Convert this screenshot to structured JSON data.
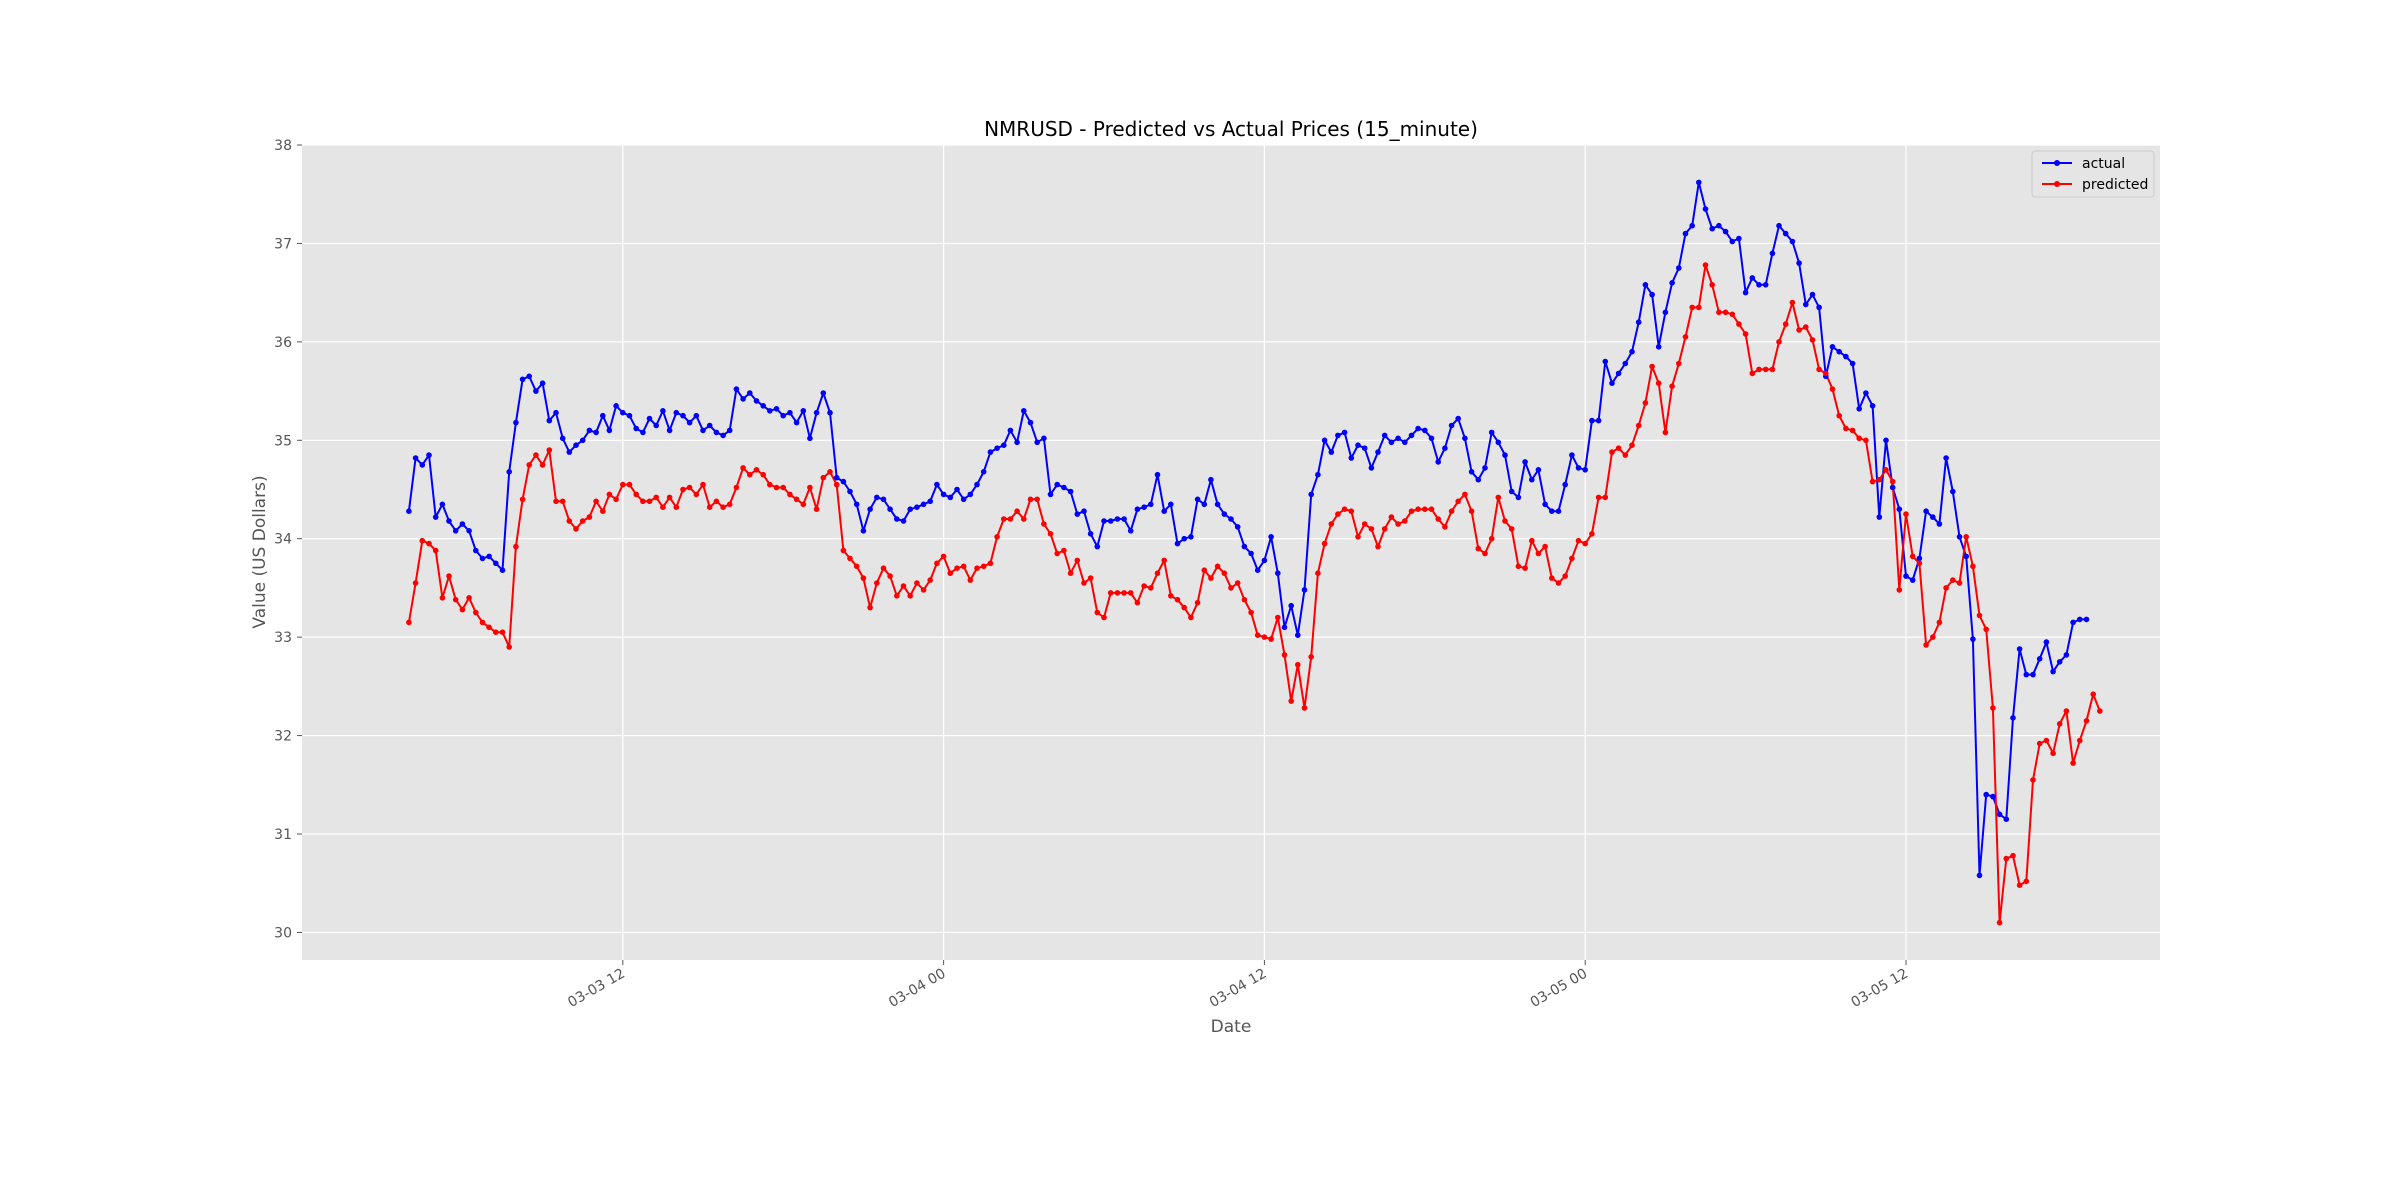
{
  "chart_data": {
    "type": "line",
    "title": "NMRUSD - Predicted vs Actual Prices (15_minute)",
    "xlabel": "Date",
    "ylabel": "Value (US Dollars)",
    "x_start": "2021-03-03 04:00",
    "x_step_minutes": 15,
    "xlim": [
      "2021-03-03 00:00",
      "2021-03-05 21:30"
    ],
    "ylim": [
      29.72,
      38.0
    ],
    "y_ticks": [
      30,
      31,
      32,
      33,
      34,
      35,
      36,
      37,
      38
    ],
    "x_ticks": [
      {
        "label": "03-03 12",
        "value": "2021-03-03 12:00"
      },
      {
        "label": "03-04 00",
        "value": "2021-03-04 00:00"
      },
      {
        "label": "03-04 12",
        "value": "2021-03-04 12:00"
      },
      {
        "label": "03-05 00",
        "value": "2021-03-05 00:00"
      },
      {
        "label": "03-05 12",
        "value": "2021-03-05 12:00"
      }
    ],
    "grid": true,
    "legend_position": "top-right",
    "series": [
      {
        "name": "actual",
        "color": "#0000ff",
        "values": [
          34.28,
          34.82,
          34.75,
          34.85,
          34.22,
          34.35,
          34.18,
          34.08,
          34.15,
          34.08,
          33.88,
          33.8,
          33.82,
          33.75,
          33.68,
          34.68,
          35.18,
          35.62,
          35.65,
          35.5,
          35.58,
          35.2,
          35.28,
          35.02,
          34.88,
          34.95,
          35.0,
          35.1,
          35.08,
          35.25,
          35.1,
          35.35,
          35.28,
          35.25,
          35.12,
          35.08,
          35.22,
          35.15,
          35.3,
          35.1,
          35.28,
          35.25,
          35.18,
          35.25,
          35.1,
          35.15,
          35.08,
          35.05,
          35.1,
          35.52,
          35.42,
          35.48,
          35.4,
          35.35,
          35.3,
          35.32,
          35.25,
          35.28,
          35.18,
          35.3,
          35.02,
          35.28,
          35.48,
          35.28,
          34.62,
          34.58,
          34.48,
          34.35,
          34.08,
          34.3,
          34.42,
          34.4,
          34.3,
          34.2,
          34.18,
          34.3,
          34.32,
          34.35,
          34.38,
          34.55,
          34.45,
          34.42,
          34.5,
          34.4,
          34.45,
          34.55,
          34.68,
          34.88,
          34.92,
          34.95,
          35.1,
          34.98,
          35.3,
          35.18,
          34.98,
          35.02,
          34.45,
          34.55,
          34.52,
          34.48,
          34.25,
          34.28,
          34.05,
          33.92,
          34.18,
          34.18,
          34.2,
          34.2,
          34.08,
          34.3,
          34.32,
          34.35,
          34.65,
          34.28,
          34.35,
          33.95,
          34.0,
          34.02,
          34.4,
          34.35,
          34.6,
          34.35,
          34.25,
          34.2,
          34.12,
          33.92,
          33.85,
          33.68,
          33.78,
          34.02,
          33.65,
          33.1,
          33.32,
          33.02,
          33.48,
          34.45,
          34.65,
          35.0,
          34.88,
          35.05,
          35.08,
          34.82,
          34.95,
          34.92,
          34.72,
          34.88,
          35.05,
          34.98,
          35.02,
          34.98,
          35.05,
          35.12,
          35.1,
          35.02,
          34.78,
          34.92,
          35.15,
          35.22,
          35.02,
          34.68,
          34.6,
          34.72,
          35.08,
          34.98,
          34.85,
          34.48,
          34.42,
          34.78,
          34.6,
          34.7,
          34.35,
          34.28,
          34.28,
          34.55,
          34.85,
          34.72,
          34.7,
          35.2,
          35.2,
          35.8,
          35.58,
          35.68,
          35.78,
          35.9,
          36.2,
          36.58,
          36.48,
          35.95,
          36.3,
          36.6,
          36.75,
          37.1,
          37.18,
          37.62,
          37.35,
          37.15,
          37.18,
          37.12,
          37.02,
          37.05,
          36.5,
          36.65,
          36.58,
          36.58,
          36.9,
          37.18,
          37.1,
          37.02,
          36.8,
          36.38,
          36.48,
          36.35,
          35.65,
          35.95,
          35.9,
          35.85,
          35.78,
          35.32,
          35.48,
          35.35,
          34.22,
          35.0,
          34.52,
          34.3,
          33.62,
          33.58,
          33.8,
          34.28,
          34.22,
          34.15,
          34.82,
          34.48,
          34.02,
          33.82,
          32.98,
          30.58,
          31.4,
          31.38,
          31.2,
          31.15,
          32.18,
          32.88,
          32.62,
          32.62,
          32.78,
          32.95,
          32.65,
          32.75,
          32.82,
          33.15,
          33.18,
          33.18
        ]
      },
      {
        "name": "predicted",
        "color": "#ff0000",
        "values": [
          33.15,
          33.55,
          33.98,
          33.95,
          33.88,
          33.4,
          33.62,
          33.38,
          33.28,
          33.4,
          33.25,
          33.15,
          33.1,
          33.05,
          33.05,
          32.9,
          33.92,
          34.4,
          34.75,
          34.85,
          34.75,
          34.9,
          34.38,
          34.38,
          34.18,
          34.1,
          34.18,
          34.22,
          34.38,
          34.28,
          34.45,
          34.4,
          34.55,
          34.55,
          34.45,
          34.38,
          34.38,
          34.42,
          34.32,
          34.42,
          34.32,
          34.5,
          34.52,
          34.45,
          34.55,
          34.32,
          34.38,
          34.32,
          34.35,
          34.52,
          34.72,
          34.65,
          34.7,
          34.65,
          34.55,
          34.52,
          34.52,
          34.45,
          34.4,
          34.35,
          34.52,
          34.3,
          34.62,
          34.68,
          34.55,
          33.88,
          33.8,
          33.72,
          33.6,
          33.3,
          33.55,
          33.7,
          33.62,
          33.42,
          33.52,
          33.42,
          33.55,
          33.48,
          33.58,
          33.75,
          33.82,
          33.65,
          33.7,
          33.72,
          33.58,
          33.7,
          33.72,
          33.75,
          34.02,
          34.2,
          34.2,
          34.28,
          34.2,
          34.4,
          34.4,
          34.15,
          34.05,
          33.85,
          33.88,
          33.65,
          33.78,
          33.55,
          33.6,
          33.25,
          33.2,
          33.45,
          33.45,
          33.45,
          33.45,
          33.35,
          33.52,
          33.5,
          33.65,
          33.78,
          33.42,
          33.38,
          33.3,
          33.2,
          33.35,
          33.68,
          33.6,
          33.72,
          33.65,
          33.5,
          33.55,
          33.38,
          33.25,
          33.02,
          33.0,
          32.98,
          33.2,
          32.82,
          32.35,
          32.72,
          32.28,
          32.8,
          33.65,
          33.95,
          34.15,
          34.25,
          34.3,
          34.28,
          34.02,
          34.15,
          34.1,
          33.92,
          34.1,
          34.22,
          34.15,
          34.18,
          34.28,
          34.3,
          34.3,
          34.3,
          34.2,
          34.12,
          34.28,
          34.38,
          34.45,
          34.28,
          33.9,
          33.85,
          34.0,
          34.42,
          34.18,
          34.1,
          33.72,
          33.7,
          33.98,
          33.85,
          33.92,
          33.6,
          33.55,
          33.62,
          33.8,
          33.98,
          33.95,
          34.05,
          34.42,
          34.42,
          34.88,
          34.92,
          34.85,
          34.95,
          35.15,
          35.38,
          35.75,
          35.58,
          35.08,
          35.55,
          35.78,
          36.05,
          36.35,
          36.35,
          36.78,
          36.58,
          36.3,
          36.3,
          36.28,
          36.18,
          36.08,
          35.68,
          35.72,
          35.72,
          35.72,
          36.0,
          36.18,
          36.4,
          36.12,
          36.15,
          36.02,
          35.72,
          35.68,
          35.52,
          35.25,
          35.12,
          35.1,
          35.02,
          35.0,
          34.58,
          34.6,
          34.7,
          34.58,
          33.48,
          34.25,
          33.82,
          33.75,
          32.92,
          33.0,
          33.15,
          33.5,
          33.58,
          33.55,
          34.02,
          33.72,
          33.22,
          33.08,
          32.28,
          30.1,
          30.75,
          30.78,
          30.48,
          30.52,
          31.55,
          31.92,
          31.95,
          31.82,
          32.12,
          32.25,
          31.72,
          31.95,
          32.15,
          32.42,
          32.25
        ]
      }
    ]
  }
}
